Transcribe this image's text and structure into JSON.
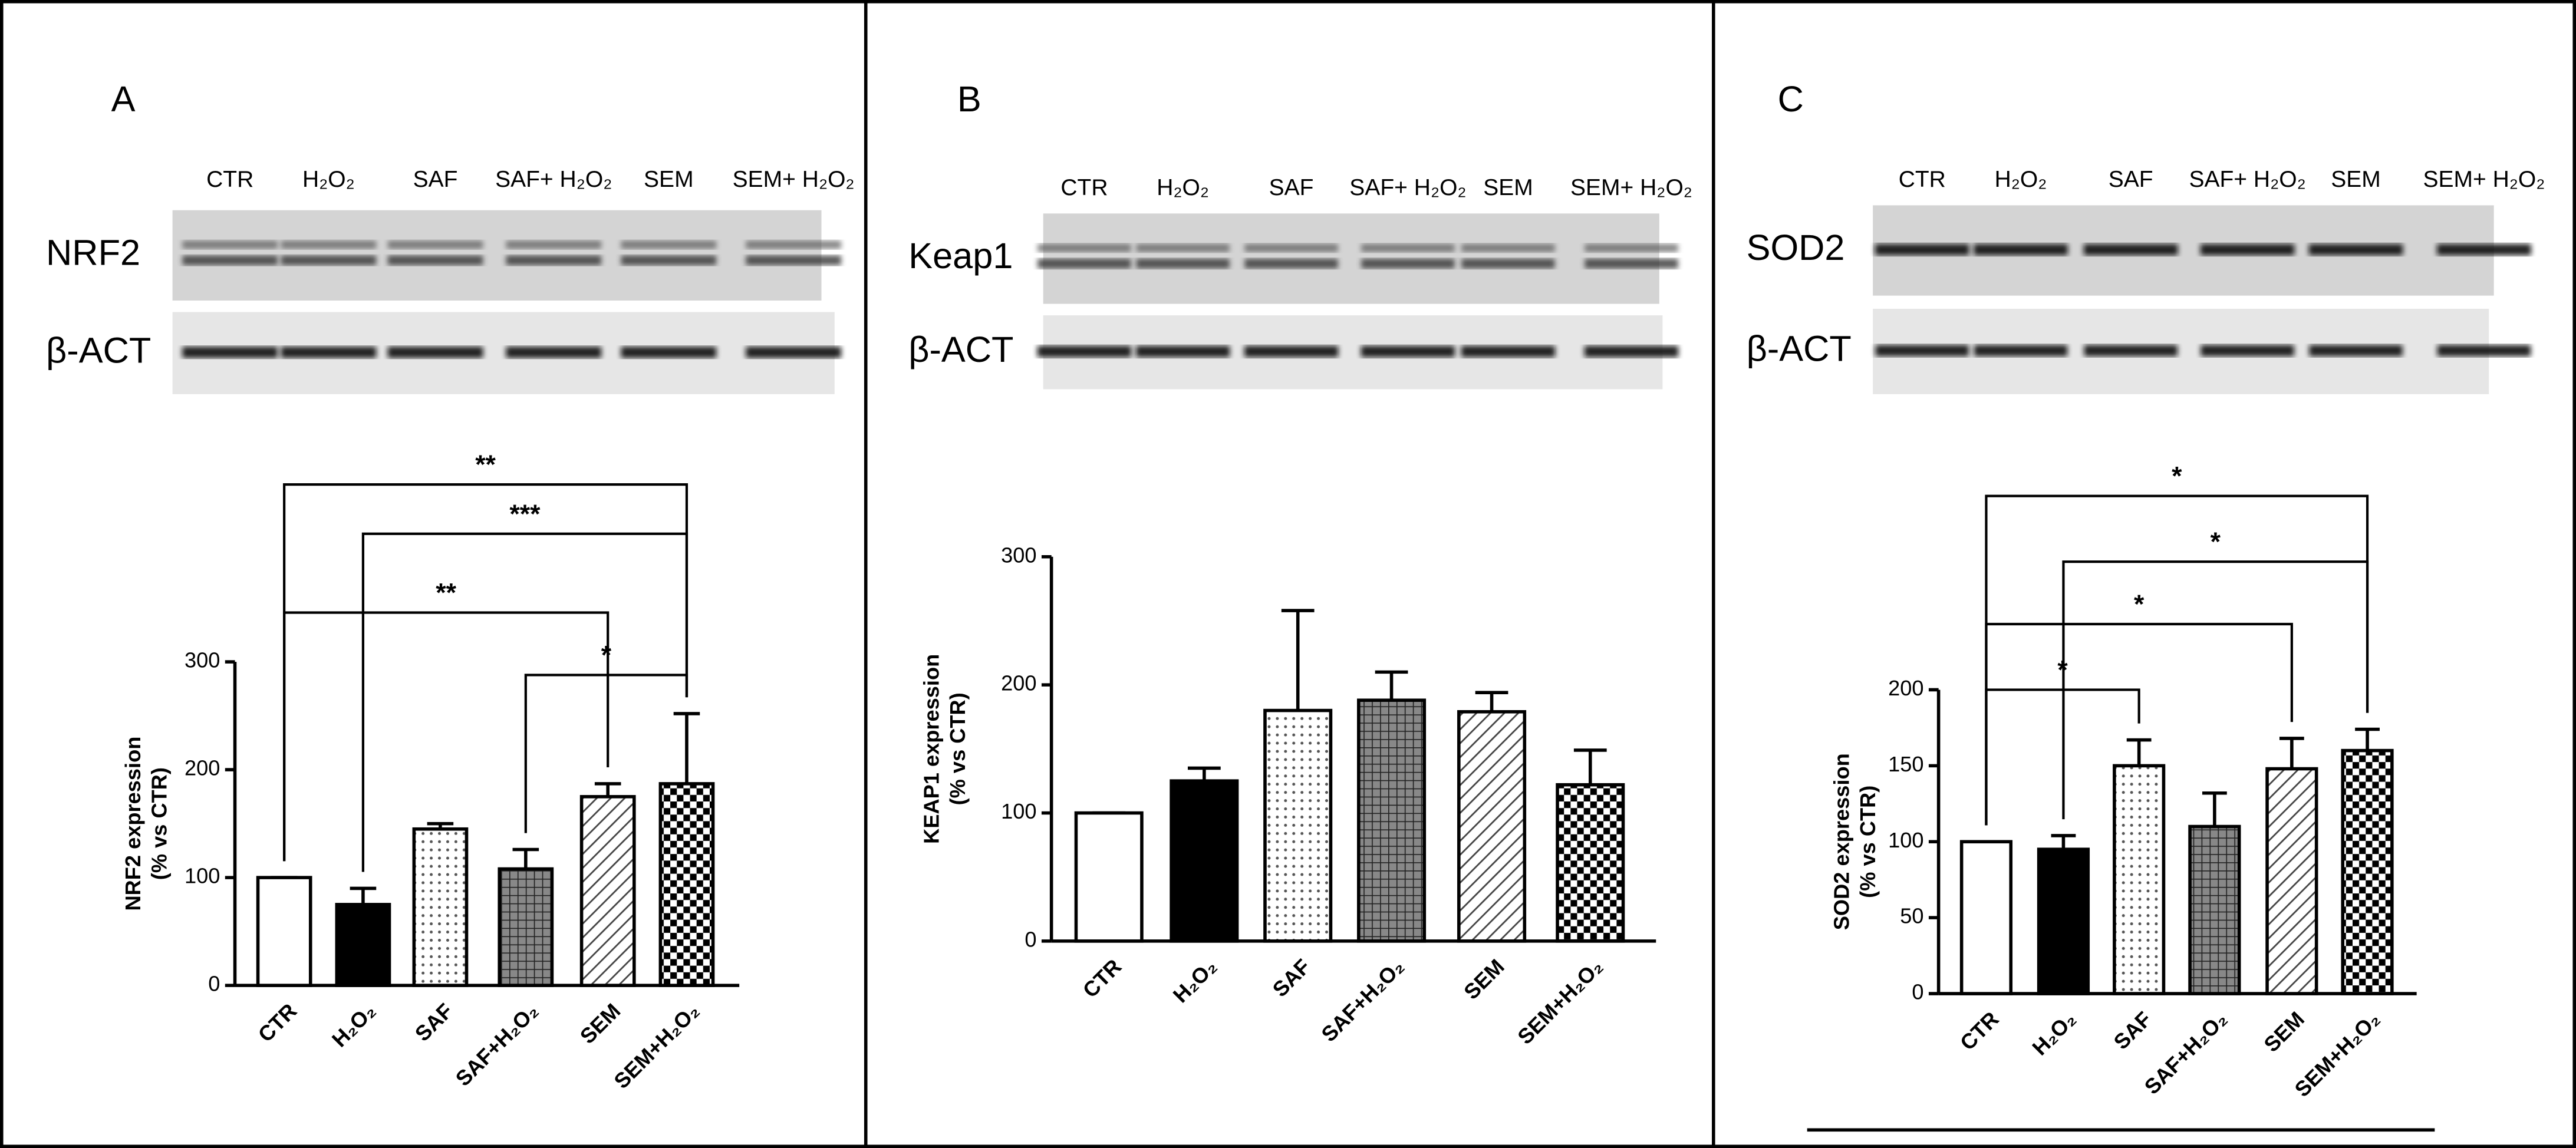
{
  "chart_data": [
    {
      "type": "bar",
      "panel_label": "A",
      "blot": {
        "lanes": [
          "CTR",
          "H₂O₂",
          "SAF",
          "SAF+ H₂O₂",
          "SEM",
          "SEM+ H₂O₂"
        ],
        "rows": [
          "NRF2",
          "β-ACT"
        ]
      },
      "ylabel": [
        "NRF2 expression",
        "(% vs CTR)"
      ],
      "categories": [
        "CTR",
        "H₂O₂",
        "SAF",
        "SAF+H₂O₂",
        "SEM",
        "SEM+H₂O₂"
      ],
      "values": [
        100,
        75,
        145,
        108,
        175,
        187
      ],
      "errors": [
        0,
        15,
        5,
        18,
        12,
        65
      ],
      "ylim": [
        0,
        300
      ],
      "yticks": [
        0,
        100,
        200,
        300
      ],
      "annotations": [
        {
          "text": "**",
          "between": [
            "CTR",
            "SEM+H₂O₂"
          ]
        },
        {
          "text": "***",
          "between": [
            "H₂O₂",
            "SEM+H₂O₂"
          ]
        },
        {
          "text": "**",
          "between": [
            "CTR",
            "SEM"
          ]
        },
        {
          "text": "*",
          "between": [
            "SAF+H₂O₂",
            "SEM+H₂O₂"
          ]
        }
      ]
    },
    {
      "type": "bar",
      "panel_label": "B",
      "blot": {
        "lanes": [
          "CTR",
          "H₂O₂",
          "SAF",
          "SAF+ H₂O₂",
          "SEM",
          "SEM+ H₂O₂"
        ],
        "rows": [
          "Keap1",
          "β-ACT"
        ]
      },
      "ylabel": [
        "KEAP1 expression",
        "(% vs CTR)"
      ],
      "categories": [
        "CTR",
        "H₂O₂",
        "SAF",
        "SAF+H₂O₂",
        "SEM",
        "SEM+H₂O₂"
      ],
      "values": [
        100,
        125,
        180,
        188,
        179,
        122
      ],
      "errors": [
        0,
        10,
        78,
        22,
        15,
        27
      ],
      "ylim": [
        0,
        300
      ],
      "yticks": [
        0,
        100,
        200,
        300
      ],
      "annotations": []
    },
    {
      "type": "bar",
      "panel_label": "C",
      "blot": {
        "lanes": [
          "CTR",
          "H₂O₂",
          "SAF",
          "SAF+ H₂O₂",
          "SEM",
          "SEM+ H₂O₂"
        ],
        "rows": [
          "SOD2",
          "β-ACT"
        ]
      },
      "ylabel": [
        "SOD2 expression",
        "(% vs CTR)"
      ],
      "categories": [
        "CTR",
        "H₂O₂",
        "SAF",
        "SAF+H₂O₂",
        "SEM",
        "SEM+H₂O₂"
      ],
      "values": [
        100,
        95,
        150,
        110,
        148,
        160
      ],
      "errors": [
        0,
        9,
        17,
        22,
        20,
        14
      ],
      "ylim": [
        0,
        200
      ],
      "yticks": [
        0,
        50,
        100,
        150,
        200
      ],
      "annotations": [
        {
          "text": "*",
          "between": [
            "CTR",
            "SEM+H₂O₂"
          ]
        },
        {
          "text": "*",
          "between": [
            "H₂O₂",
            "SEM+H₂O₂"
          ]
        },
        {
          "text": "*",
          "between": [
            "CTR",
            "SEM"
          ]
        },
        {
          "text": "*",
          "between": [
            "CTR",
            "SAF"
          ]
        }
      ]
    }
  ]
}
